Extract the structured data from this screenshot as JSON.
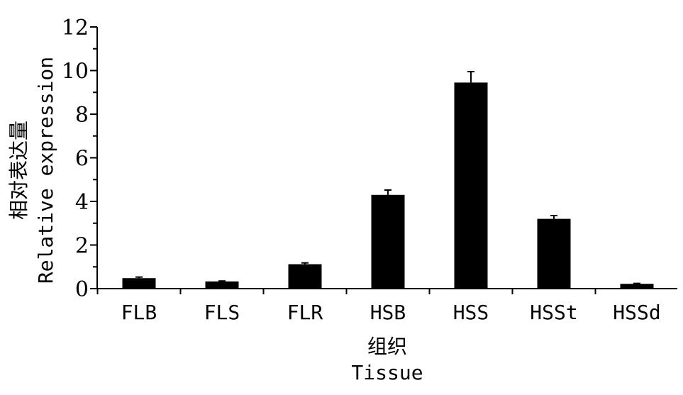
{
  "chart_data": {
    "type": "bar",
    "categories": [
      "FLB",
      "FLS",
      "FLR",
      "HSB",
      "HSS",
      "HSSt",
      "HSSd"
    ],
    "values": [
      0.48,
      0.33,
      1.12,
      4.3,
      9.45,
      3.2,
      0.22
    ],
    "errors": [
      0.05,
      0.02,
      0.06,
      0.22,
      0.5,
      0.15,
      0.02
    ],
    "xlabel_cn": "组织",
    "xlabel_en": "Tissue",
    "ylabel_cn": "相对表达量",
    "ylabel_en": "Relative expression",
    "ylim": [
      0,
      12
    ],
    "yticks": [
      0,
      2,
      4,
      6,
      8,
      10,
      12
    ],
    "bar_color": "#000000",
    "grid": false,
    "legend": "none"
  }
}
